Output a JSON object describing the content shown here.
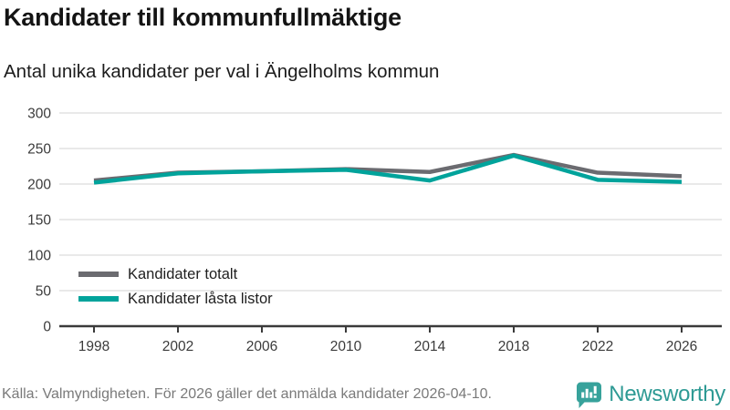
{
  "header": {
    "title": "Kandidater till kommunfullmäktige",
    "subtitle": "Antal unika kandidater per val i Ängelholms kommun"
  },
  "chart_data": {
    "type": "line",
    "x": [
      1998,
      2002,
      2006,
      2010,
      2014,
      2018,
      2022,
      2026
    ],
    "series": [
      {
        "name": "Kandidater totalt",
        "color": "#6b6b70",
        "values": [
          205,
          216,
          218,
          221,
          217,
          241,
          216,
          211
        ]
      },
      {
        "name": "Kandidater låsta listor",
        "color": "#00a39b",
        "values": [
          202,
          215,
          218,
          220,
          205,
          240,
          206,
          203
        ]
      }
    ],
    "ylim": [
      0,
      300
    ],
    "yticks": [
      0,
      50,
      100,
      150,
      200,
      250,
      300
    ],
    "grid": "horizontal",
    "legend_position": "inside-bottom-left",
    "axis_color": "#3a3a3a",
    "gridline_color": "#e2e2e2"
  },
  "footer": {
    "source": "Källa: Valmyndigheten. För 2026 gäller det anmälda kandidater 2026-04-10.",
    "brand": "Newsworthy",
    "brand_color": "#2e9a94"
  }
}
